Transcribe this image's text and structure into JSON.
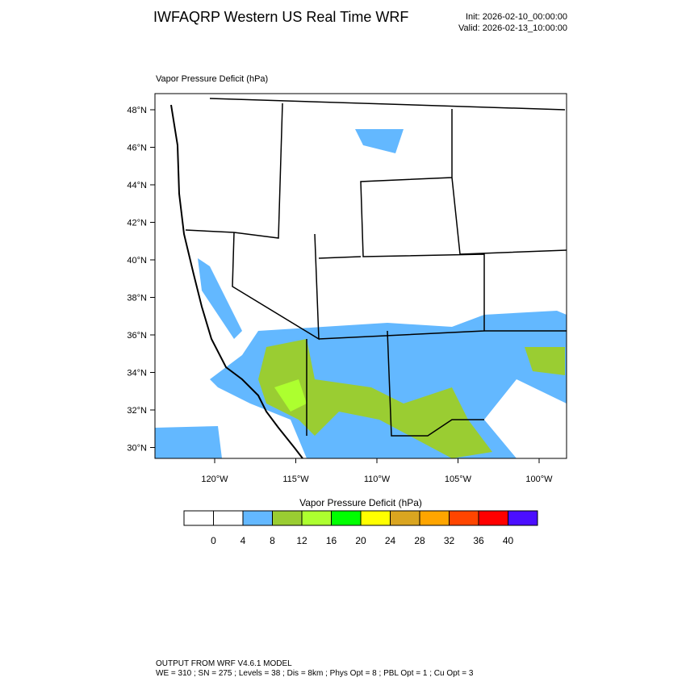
{
  "header": {
    "title": "IWFAQRP Western US Real Time WRF",
    "init": "Init: 2026-02-10_00:00:00",
    "valid": "Valid: 2026-02-13_10:00:00"
  },
  "map": {
    "label": "Vapor Pressure Deficit   (hPa)",
    "lat_labels": [
      "48°N",
      "46°N",
      "44°N",
      "42°N",
      "40°N",
      "38°N",
      "36°N",
      "34°N",
      "32°N",
      "30°N"
    ],
    "lon_labels": [
      "120°W",
      "115°W",
      "110°W",
      "105°W",
      "100°W"
    ]
  },
  "colorbar": {
    "title": "Vapor Pressure Deficit  (hPa)",
    "levels": [
      0,
      4,
      8,
      12,
      16,
      20,
      24,
      28,
      32,
      36,
      40
    ],
    "colors": [
      "#ffffff",
      "#ffffff",
      "#63b8ff",
      "#9acd32",
      "#adff2f",
      "#00ff00",
      "#ffff00",
      "#daa520",
      "#ffa500",
      "#ff4500",
      "#ff0000",
      "#4b0eff"
    ]
  },
  "footer": {
    "line1": "OUTPUT FROM WRF V4.6.1 MODEL",
    "line2": "WE = 310 ; SN = 275 ; Levels = 38 ; Dis = 8km ; Phys Opt = 8 ; PBL Opt = 1 ; Cu Opt = 3"
  }
}
